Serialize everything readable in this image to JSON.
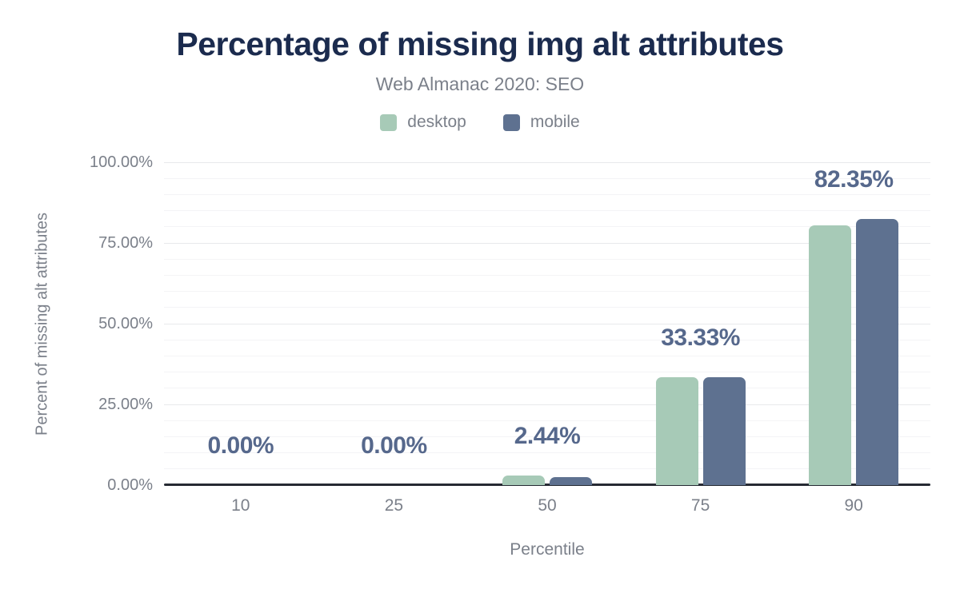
{
  "header": {
    "title": "Percentage of missing img alt attributes",
    "subtitle": "Web Almanac 2020: SEO"
  },
  "colors": {
    "desktop": "#a7cab7",
    "mobile": "#5e7190",
    "data_label": "#56688c",
    "title": "#1b2b4e",
    "axis_text": "#7b808a",
    "axis_line": "#262a33"
  },
  "chart_data": {
    "type": "bar",
    "title": "Percentage of missing img alt attributes",
    "subtitle": "Web Almanac 2020: SEO",
    "categories": [
      "10",
      "25",
      "50",
      "75",
      "90"
    ],
    "series": [
      {
        "name": "desktop",
        "color": "#a7cab7",
        "values": [
          0,
          0,
          3.0,
          33.33,
          80.4
        ]
      },
      {
        "name": "mobile",
        "color": "#5e7190",
        "values": [
          0,
          0,
          2.44,
          33.33,
          82.35
        ]
      }
    ],
    "data_labels": [
      "0.00%",
      "0.00%",
      "2.44%",
      "33.33%",
      "82.35%"
    ],
    "xlabel": "Percentile",
    "ylabel": "Percent of missing alt attributes",
    "y_ticks": [
      "0.00%",
      "25.00%",
      "50.00%",
      "75.00%",
      "100.00%"
    ],
    "y_tick_values": [
      0,
      25,
      50,
      75,
      100
    ],
    "ylim": [
      0,
      100
    ],
    "grid": {
      "minor_step": 5,
      "major_step": 25,
      "minor_on": true
    },
    "legend_position": "top",
    "legend": [
      {
        "label": "desktop",
        "color": "#a7cab7"
      },
      {
        "label": "mobile",
        "color": "#5e7190"
      }
    ]
  }
}
